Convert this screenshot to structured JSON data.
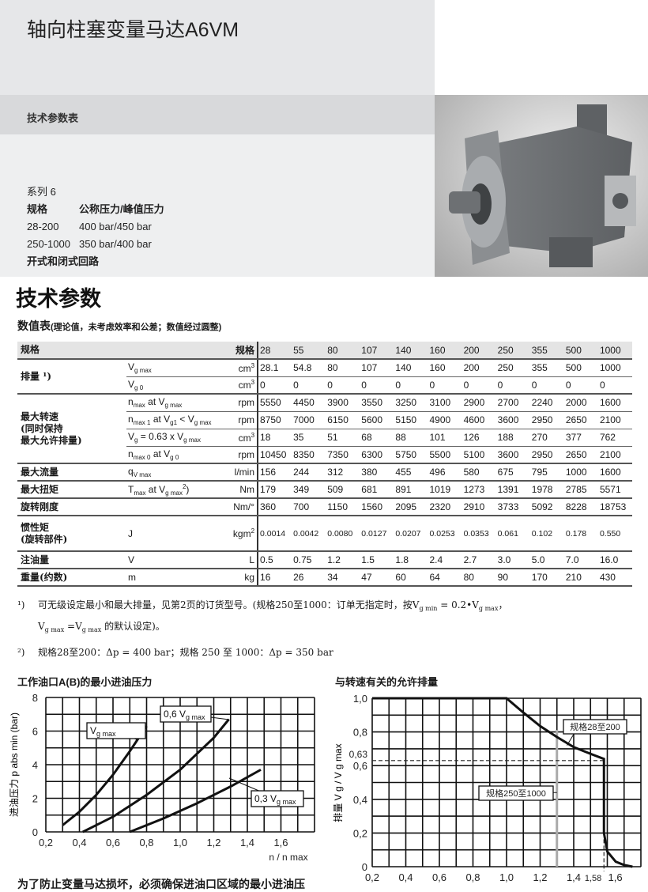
{
  "header": {
    "title": "轴向柱塞变量马达A6VM",
    "band": "技术参数表"
  },
  "info": {
    "series": "系列 6",
    "rows": [
      [
        "规格",
        "公称压力/峰值压力"
      ],
      [
        "28-200",
        "400 bar/450 bar"
      ],
      [
        "250-1000",
        "350 bar/400 bar"
      ]
    ],
    "circuit": "开式和闭式回路"
  },
  "section": {
    "title": "技术参数",
    "table_title": "数值表",
    "table_note": "(理论值，未考虑效率和公差；数值经过圆整)"
  },
  "table": {
    "header": {
      "label": "规格",
      "unit": "规格",
      "values": [
        "28",
        "55",
        "80",
        "107",
        "140",
        "160",
        "200",
        "250",
        "355",
        "500",
        "1000"
      ]
    },
    "groups": [
      {
        "label": "排量 ¹)",
        "rows": [
          {
            "param": [
              {
                "t": "V"
              },
              {
                "s": "g max"
              }
            ],
            "unit": [
              {
                "t": "cm"
              },
              {
                "p": "3"
              }
            ],
            "values": [
              "28.1",
              "54.8",
              "80",
              "107",
              "140",
              "160",
              "200",
              "250",
              "355",
              "500",
              "1000"
            ]
          },
          {
            "param": [
              {
                "t": "V"
              },
              {
                "s": "g 0"
              }
            ],
            "unit": [
              {
                "t": "cm"
              },
              {
                "p": "3"
              }
            ],
            "values": [
              "0",
              "0",
              "0",
              "0",
              "0",
              "0",
              "0",
              "0",
              "0",
              "0",
              "0"
            ]
          }
        ]
      },
      {
        "label": "最大转速\n(同时保持\n最大允许排量)",
        "rows": [
          {
            "param": [
              {
                "t": "n"
              },
              {
                "s": "max"
              },
              {
                "t": " at V"
              },
              {
                "s": "g max"
              }
            ],
            "unit": [
              {
                "t": "rpm"
              }
            ],
            "values": [
              "5550",
              "4450",
              "3900",
              "3550",
              "3250",
              "3100",
              "2900",
              "2700",
              "2240",
              "2000",
              "1600"
            ]
          },
          {
            "param": [
              {
                "t": "n"
              },
              {
                "s": "max 1"
              },
              {
                "t": " at V"
              },
              {
                "s": "g1"
              },
              {
                "t": " < V"
              },
              {
                "s": "g max"
              }
            ],
            "unit": [
              {
                "t": "rpm"
              }
            ],
            "values": [
              "8750",
              "7000",
              "6150",
              "5600",
              "5150",
              "4900",
              "4600",
              "3600",
              "2950",
              "2650",
              "2100"
            ]
          },
          {
            "param": [
              {
                "t": "V"
              },
              {
                "s": "g"
              },
              {
                "t": " = 0.63 x V"
              },
              {
                "s": "g max"
              }
            ],
            "unit": [
              {
                "t": "cm"
              },
              {
                "p": "3"
              }
            ],
            "values": [
              "18",
              "35",
              "51",
              "68",
              "88",
              "101",
              "126",
              "188",
              "270",
              "377",
              "762"
            ]
          },
          {
            "param": [
              {
                "t": "n"
              },
              {
                "s": "max 0"
              },
              {
                "t": " at V"
              },
              {
                "s": "g 0"
              }
            ],
            "unit": [
              {
                "t": "rpm"
              }
            ],
            "values": [
              "10450",
              "8350",
              "7350",
              "6300",
              "5750",
              "5500",
              "5100",
              "3600",
              "2950",
              "2650",
              "2100"
            ]
          }
        ]
      },
      {
        "label": "最大流量",
        "rows": [
          {
            "param": [
              {
                "t": "q"
              },
              {
                "s": "V max"
              }
            ],
            "unit": [
              {
                "t": "l/min"
              }
            ],
            "values": [
              "156",
              "244",
              "312",
              "380",
              "455",
              "496",
              "580",
              "675",
              "795",
              "1000",
              "1600"
            ]
          }
        ]
      },
      {
        "label": "最大扭矩",
        "rows": [
          {
            "param": [
              {
                "t": "T"
              },
              {
                "s": "max"
              },
              {
                "t": " at V"
              },
              {
                "s": "g max"
              },
              {
                "p": "2"
              },
              {
                "t": ")"
              }
            ],
            "unit": [
              {
                "t": "Nm"
              }
            ],
            "values": [
              "179",
              "349",
              "509",
              "681",
              "891",
              "1019",
              "1273",
              "1391",
              "1978",
              "2785",
              "5571"
            ]
          }
        ]
      },
      {
        "label": "旋转刚度",
        "rows": [
          {
            "param": [],
            "unit": [
              {
                "t": "Nm/°"
              }
            ],
            "values": [
              "360",
              "700",
              "1150",
              "1560",
              "2095",
              "2320",
              "2910",
              "3733",
              "5092",
              "8228",
              "18753"
            ]
          }
        ]
      },
      {
        "label": "惯性矩\n(旋转部件)",
        "tall": true,
        "rows": [
          {
            "param": [
              {
                "t": "J"
              }
            ],
            "unit": [
              {
                "t": "kgm"
              },
              {
                "p": "2"
              }
            ],
            "small": true,
            "values": [
              "0.0014",
              "0.0042",
              "0.0080",
              "0.0127",
              "0.0207",
              "0.0253",
              "0.0353",
              "0.061",
              "0.102",
              "0.178",
              "0.550"
            ]
          }
        ]
      },
      {
        "label": "注油量",
        "rows": [
          {
            "param": [
              {
                "t": "V"
              }
            ],
            "unit": [
              {
                "t": "L"
              }
            ],
            "values": [
              "0.5",
              "0.75",
              "1.2",
              "1.5",
              "1.8",
              "2.4",
              "2.7",
              "3.0",
              "5.0",
              "7.0",
              "16.0"
            ]
          }
        ]
      },
      {
        "label": "重量(约数)",
        "rows": [
          {
            "param": [
              {
                "t": "m"
              }
            ],
            "unit": [
              {
                "t": "kg"
              }
            ],
            "values": [
              "16",
              "26",
              "34",
              "47",
              "60",
              "64",
              "80",
              "90",
              "170",
              "210",
              "430"
            ]
          }
        ]
      }
    ]
  },
  "notes": [
    {
      "mark": "¹)",
      "line1": [
        {
          "t": "可无级设定最小和最大排量，见第2页的订货型号。(规格250至1000：订单无指定时，按V"
        },
        {
          "s": "g min"
        },
        {
          "t": " = 0.2•V"
        },
        {
          "s": "g max"
        },
        {
          "t": "，"
        }
      ],
      "line2": [
        {
          "t": "V"
        },
        {
          "s": "g max"
        },
        {
          "t": " =V"
        },
        {
          "s": "g max"
        },
        {
          "t": " 的默认设定)。"
        }
      ]
    },
    {
      "mark": "²)",
      "line1": [
        {
          "t": "规格28至200：Δp = 400 bar；规格 250 至 1000：Δp = 350 bar"
        }
      ]
    }
  ],
  "chart_data": [
    {
      "type": "line",
      "title": "工作油口A(B)的最小进油压力",
      "ylabel": "进油压力 p abs min (bar)",
      "xlabel": "n / n max",
      "xlim": [
        0.2,
        1.8
      ],
      "ylim": [
        0,
        8
      ],
      "grid": true,
      "xticks": [
        "0,2",
        "0,4",
        "0,6",
        "0,8",
        "1,0",
        "1,2",
        "1,4",
        "1,6"
      ],
      "yticks": [
        "0",
        "2",
        "4",
        "6",
        "8"
      ],
      "series": [
        {
          "name": "V g max",
          "label_parts": [
            {
              "t": "V"
            },
            {
              "s": "g max"
            }
          ],
          "points": [
            [
              0.3,
              0.4
            ],
            [
              0.4,
              1.2
            ],
            [
              0.5,
              2.2
            ],
            [
              0.6,
              3.4
            ],
            [
              0.7,
              4.8
            ],
            [
              0.8,
              6.3
            ]
          ]
        },
        {
          "name": "0,6 V g max",
          "label_parts": [
            {
              "t": "0,6 V"
            },
            {
              "s": "g max"
            }
          ],
          "points": [
            [
              0.42,
              0
            ],
            [
              0.6,
              0.9
            ],
            [
              0.8,
              2.2
            ],
            [
              1.0,
              3.7
            ],
            [
              1.2,
              5.6
            ],
            [
              1.29,
              6.7
            ]
          ]
        },
        {
          "name": "0,3 V g max",
          "label_parts": [
            {
              "t": "0,3 V"
            },
            {
              "s": "g max"
            }
          ],
          "points": [
            [
              0.7,
              0
            ],
            [
              0.9,
              0.8
            ],
            [
              1.1,
              1.7
            ],
            [
              1.3,
              2.7
            ],
            [
              1.48,
              3.7
            ]
          ]
        }
      ]
    },
    {
      "type": "line",
      "title": "与转速有关的允许排量",
      "ylabel": "排量 V g / V g max",
      "xlim": [
        0.2,
        1.8
      ],
      "ylim": [
        0,
        1.0
      ],
      "grid": true,
      "xticks": [
        "0,2",
        "0,4",
        "0,6",
        "0,8",
        "1,0",
        "1,2",
        "1,4",
        "1,6"
      ],
      "yticks": [
        "0",
        "0,2",
        "0,4",
        "0,6",
        "0,8",
        "1,0"
      ],
      "extra_ticks": {
        "y": "0,63",
        "x": "1,58"
      },
      "series": [
        {
          "points": [
            [
              0.2,
              1
            ],
            [
              1.0,
              1
            ],
            [
              1.1,
              0.915
            ],
            [
              1.2,
              0.835
            ],
            [
              1.3,
              0.77
            ],
            [
              1.4,
              0.71
            ],
            [
              1.5,
              0.67
            ],
            [
              1.58,
              0.64
            ],
            [
              1.58,
              0.2
            ],
            [
              1.6,
              0.09
            ],
            [
              1.65,
              0.03
            ],
            [
              1.7,
              0.01
            ],
            [
              1.75,
              0
            ]
          ]
        }
      ],
      "limit_x": 1.3,
      "annotations": [
        "规格28至200",
        "规格250至1000"
      ]
    }
  ],
  "bottom_text": "为了防止变量马达损坏，必须确保进油口区域的最小进油压",
  "colors": {
    "header_bg": "#e6e7e9",
    "band_bg": "#d8d9db",
    "info_bg": "#eeeff0",
    "table_header_bg": "#e4e4e4"
  }
}
